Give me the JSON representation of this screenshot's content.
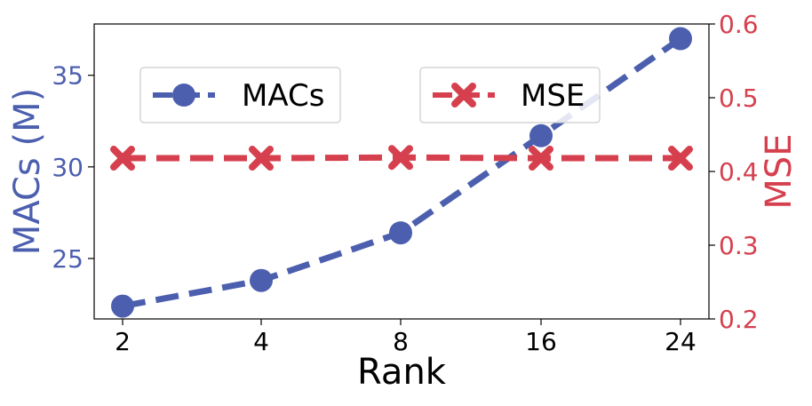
{
  "chart_data": {
    "type": "line",
    "categories": [
      "2",
      "4",
      "8",
      "16",
      "24"
    ],
    "xlabel": "Rank",
    "series": [
      {
        "name": "MACs",
        "axis": "left",
        "color": "#4c5fae",
        "marker": "circle",
        "line_style": "dashed",
        "values": [
          22.4,
          23.8,
          26.4,
          31.7,
          37.0
        ]
      },
      {
        "name": "MSE",
        "axis": "right",
        "color": "#d6404e",
        "marker": "x",
        "line_style": "dashed",
        "values": [
          0.418,
          0.418,
          0.419,
          0.418,
          0.418
        ]
      }
    ],
    "y_left": {
      "label": "MACs (M)",
      "ylim": [
        21.7,
        37.8
      ],
      "ticks": [
        "25",
        "30",
        "35"
      ],
      "color": "#4c5fae"
    },
    "y_right": {
      "label": "MSE",
      "ylim": [
        0.2,
        0.6
      ],
      "ticks": [
        "0.2",
        "0.3",
        "0.4",
        "0.5",
        "0.6"
      ],
      "color": "#d6404e"
    },
    "grid": false,
    "legend": [
      "upper-left",
      "upper-right"
    ]
  }
}
